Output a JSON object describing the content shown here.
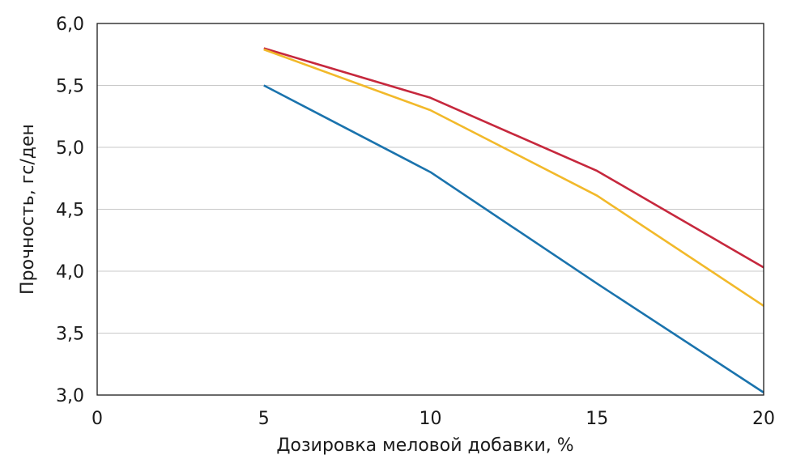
{
  "chart_data": {
    "type": "line",
    "title": "",
    "xlabel": "Дозировка меловой добавки, %",
    "ylabel": "Прочность, гс/ден",
    "xlim": [
      0,
      20
    ],
    "ylim": [
      3.0,
      6.0
    ],
    "x_ticks": [
      0,
      5,
      10,
      15,
      20
    ],
    "x_tick_labels": [
      "0",
      "5",
      "10",
      "15",
      "20"
    ],
    "y_ticks": [
      3.0,
      3.5,
      4.0,
      4.5,
      5.0,
      5.5,
      6.0
    ],
    "y_tick_labels": [
      "3,0",
      "3,5",
      "4,0",
      "4,5",
      "5,0",
      "5,5",
      "6,0"
    ],
    "grid": "horizontal",
    "series": [
      {
        "color": "#c6283d",
        "x": [
          5,
          10,
          15,
          20
        ],
        "y": [
          5.8,
          5.4,
          4.81,
          4.03
        ]
      },
      {
        "color": "#f2b92a",
        "x": [
          5,
          10,
          15,
          20
        ],
        "y": [
          5.79,
          5.3,
          4.61,
          3.72
        ]
      },
      {
        "color": "#1a73ad",
        "x": [
          5,
          10,
          15,
          20
        ],
        "y": [
          5.5,
          4.8,
          3.9,
          3.02
        ]
      }
    ]
  }
}
